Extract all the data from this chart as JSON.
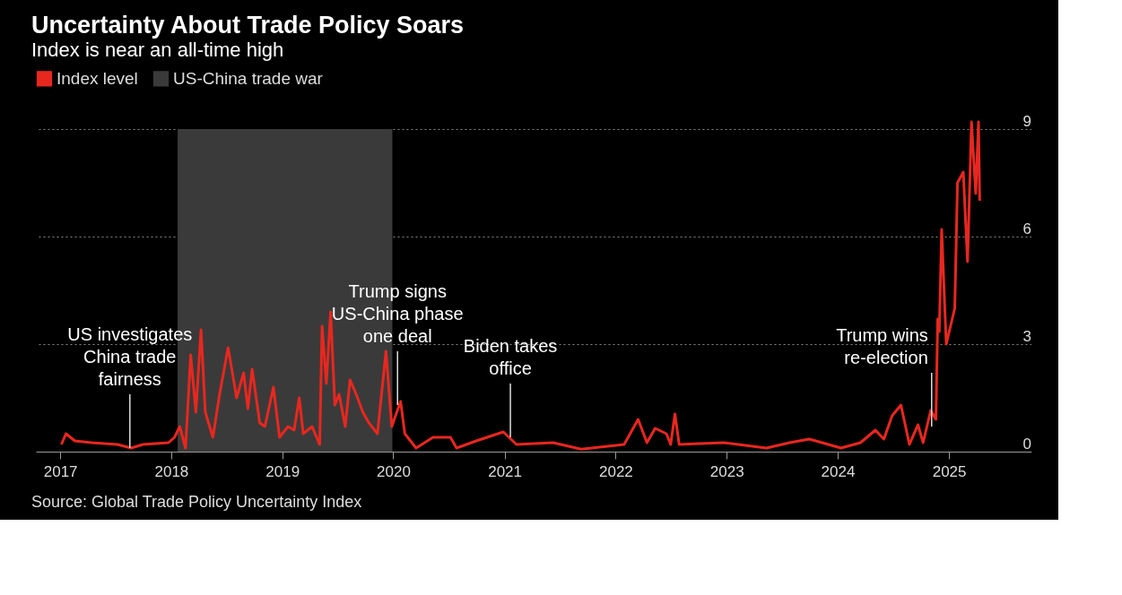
{
  "chart_data": {
    "type": "line",
    "title": "Uncertainty About Trade Policy Soars",
    "subtitle": "Index is near an all-time high",
    "x": [
      "2017-01-05",
      "2017-01-20",
      "2017-02-18",
      "2017-04-14",
      "2017-07-08",
      "2017-08-22",
      "2017-09-30",
      "2017-12-23",
      "2018-01-12",
      "2018-01-29",
      "2018-02-17",
      "2018-03-06",
      "2018-03-23",
      "2018-04-09",
      "2018-04-23",
      "2018-05-18",
      "2018-06-09",
      "2018-07-07",
      "2018-08-04",
      "2018-08-27",
      "2018-09-10",
      "2018-09-24",
      "2018-10-19",
      "2018-11-05",
      "2018-12-03",
      "2018-12-23",
      "2019-01-20",
      "2019-02-09",
      "2019-02-26",
      "2019-03-11",
      "2019-04-09",
      "2019-05-04",
      "2019-05-12",
      "2019-05-26",
      "2019-06-09",
      "2019-06-23",
      "2019-07-07",
      "2019-07-27",
      "2019-08-12",
      "2019-09-01",
      "2019-09-23",
      "2019-10-13",
      "2019-11-10",
      "2019-12-08",
      "2019-12-27",
      "2020-01-25",
      "2020-02-08",
      "2020-03-16",
      "2020-05-11",
      "2020-07-07",
      "2020-07-27",
      "2020-09-30",
      "2020-12-28",
      "2021-02-09",
      "2021-06-09",
      "2021-09-10",
      "2022-01-29",
      "2022-03-16",
      "2022-04-14",
      "2022-05-11",
      "2022-06-17",
      "2022-07-01",
      "2022-07-15",
      "2022-07-29",
      "2022-12-23",
      "2023-05-12",
      "2023-07-27",
      "2023-09-30",
      "2024-01-12",
      "2024-03-16",
      "2024-05-04",
      "2024-06-01",
      "2024-06-28",
      "2024-07-27",
      "2024-08-24",
      "2024-09-21",
      "2024-10-08",
      "2024-11-02",
      "2024-11-19",
      "2024-11-25",
      "2024-11-30",
      "2024-12-08",
      "2024-12-23",
      "2025-01-20",
      "2025-01-29",
      "2025-02-17",
      "2025-03-03",
      "2025-03-16",
      "2025-03-30",
      "2025-04-08",
      "2025-04-12"
    ],
    "series": [
      {
        "name": "Index level",
        "color": "#e8271f",
        "values": [
          0.2,
          0.5,
          0.3,
          0.25,
          0.2,
          0.1,
          0.2,
          0.25,
          0.4,
          0.7,
          0.1,
          2.7,
          1.1,
          3.4,
          1.1,
          0.4,
          1.6,
          2.9,
          1.5,
          2.2,
          1.2,
          2.3,
          0.8,
          0.7,
          1.8,
          0.4,
          0.7,
          0.6,
          1.5,
          0.5,
          0.7,
          0.2,
          3.5,
          1.9,
          3.9,
          1.3,
          1.6,
          0.7,
          2.0,
          1.6,
          1.1,
          0.8,
          0.5,
          2.8,
          0.7,
          1.4,
          0.5,
          0.1,
          0.4,
          0.4,
          0.1,
          0.3,
          0.55,
          0.2,
          0.25,
          0.07,
          0.2,
          0.9,
          0.25,
          0.65,
          0.5,
          0.2,
          1.05,
          0.2,
          0.25,
          0.1,
          0.25,
          0.35,
          0.1,
          0.25,
          0.6,
          0.35,
          1.0,
          1.3,
          0.2,
          0.75,
          0.25,
          1.15,
          0.9,
          3.7,
          3.35,
          6.2,
          3.0,
          4.0,
          7.5,
          7.8,
          5.3,
          9.2,
          7.2,
          9.2,
          7.0
        ]
      }
    ],
    "bands": [
      {
        "axis": "x",
        "from": "2018-01-22",
        "to": "2019-12-29",
        "label": "US-China trade war",
        "color": "#3a3a3a"
      }
    ],
    "xlim": [
      "2016-10-13",
      "2025-09-29"
    ],
    "xticks": [
      {
        "value": "2017",
        "label": "2017"
      },
      {
        "value": "2018",
        "label": "2018"
      },
      {
        "value": "2019",
        "label": "2019"
      },
      {
        "value": "2020",
        "label": "2020"
      },
      {
        "value": "2021",
        "label": "2021"
      },
      {
        "value": "2022",
        "label": "2022"
      },
      {
        "value": "2023",
        "label": "2023"
      },
      {
        "value": "2024",
        "label": "2024"
      },
      {
        "value": "2025",
        "label": "2025"
      }
    ],
    "ylim": [
      0,
      9.5
    ],
    "yticks": [
      0,
      3,
      6,
      9
    ],
    "grid": "y",
    "legend": "top left",
    "line_style": "solid",
    "marker": "none",
    "annotations": [
      {
        "text": "US investigates\nChina trade\nfairness",
        "x": "2017-08-18",
        "y": 0.1
      },
      {
        "text": "Trump signs\nUS-China phase\none deal",
        "x": "2020-01-15",
        "y": 1.3
      },
      {
        "text": "Biden takes\noffice",
        "x": "2021-01-20",
        "y": 0.4
      },
      {
        "text": "Trump wins\nre-election",
        "x": "2024-11-05",
        "y": 0.7
      },
      "Source: Global Trade Policy Uncertainty Index"
    ]
  }
}
